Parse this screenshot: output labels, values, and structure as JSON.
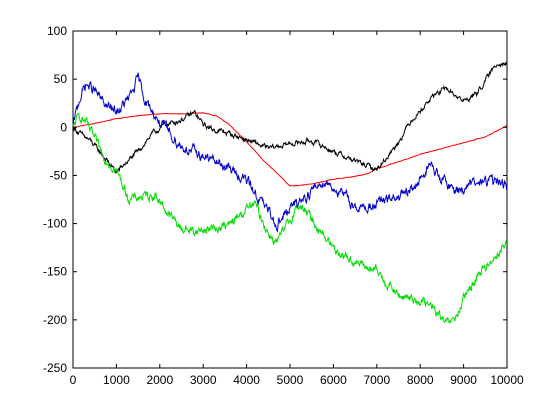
{
  "chart_data": {
    "type": "line",
    "title": "",
    "xlabel": "",
    "ylabel": "",
    "xlim": [
      0,
      10000
    ],
    "ylim": [
      -250,
      100
    ],
    "x_ticks": [
      "0",
      "1000",
      "2000",
      "3000",
      "4000",
      "5000",
      "6000",
      "7000",
      "8000",
      "9000",
      "10000"
    ],
    "y_ticks": [
      "100",
      "50",
      "0",
      "-50",
      "-100",
      "-150",
      "-200",
      "-250"
    ],
    "grid": false,
    "legend": "none",
    "series": [
      {
        "color": "#ff0000",
        "x": [
          0,
          500,
          1000,
          1500,
          2000,
          2500,
          3000,
          3300,
          3600,
          4000,
          4400,
          4800,
          5000,
          5500,
          6000,
          6500,
          6800,
          7000,
          7500,
          8000,
          8500,
          9000,
          9500,
          9800,
          10000
        ],
        "y": [
          0,
          4,
          9,
          12,
          14,
          14,
          15,
          12,
          3,
          -15,
          -35,
          -52,
          -61,
          -59,
          -54,
          -51,
          -48,
          -43,
          -36,
          -28,
          -22,
          -16,
          -10,
          -3,
          2
        ],
        "noise": 0.4
      },
      {
        "color": "#000000",
        "x": [
          0,
          200,
          400,
          700,
          1000,
          1200,
          1500,
          1800,
          2100,
          2500,
          2800,
          3000,
          3200,
          3500,
          4000,
          4500,
          5000,
          5500,
          6000,
          6500,
          7000,
          7200,
          7500,
          7800,
          8000,
          8300,
          8600,
          9000,
          9300,
          9600,
          9800,
          10000
        ],
        "y": [
          0,
          -8,
          -14,
          -30,
          -47,
          -38,
          -25,
          -8,
          2,
          8,
          15,
          3,
          -2,
          -5,
          -13,
          -22,
          -17,
          -14,
          -25,
          -35,
          -44,
          -33,
          -15,
          8,
          17,
          33,
          40,
          27,
          35,
          55,
          68,
          66
        ],
        "noise": 4
      },
      {
        "color": "#00dd00",
        "x": [
          0,
          150,
          300,
          700,
          1000,
          1300,
          1600,
          1900,
          2200,
          2500,
          2800,
          3200,
          3600,
          4000,
          4200,
          4500,
          4700,
          4900,
          5200,
          5500,
          6000,
          6500,
          7000,
          7500,
          8000,
          8300,
          8600,
          8800,
          9000,
          9300,
          9600,
          10000
        ],
        "y": [
          0,
          12,
          5,
          -30,
          -45,
          -75,
          -72,
          -70,
          -90,
          -105,
          -108,
          -105,
          -102,
          -85,
          -80,
          -110,
          -120,
          -105,
          -80,
          -95,
          -125,
          -140,
          -150,
          -175,
          -180,
          -188,
          -205,
          -200,
          -180,
          -155,
          -140,
          -120
        ],
        "noise": 7
      },
      {
        "color": "#0000cc",
        "x": [
          0,
          150,
          300,
          500,
          700,
          1000,
          1300,
          1500,
          1700,
          2000,
          2500,
          3000,
          3500,
          4000,
          4300,
          4700,
          5000,
          5400,
          5800,
          6200,
          6600,
          7000,
          7300,
          7700,
          8000,
          8200,
          8500,
          8800,
          9200,
          9600,
          10000
        ],
        "y": [
          0,
          30,
          45,
          38,
          25,
          15,
          30,
          50,
          25,
          5,
          -20,
          -30,
          -40,
          -55,
          -75,
          -100,
          -85,
          -70,
          -55,
          -70,
          -85,
          -80,
          -75,
          -70,
          -55,
          -38,
          -55,
          -65,
          -60,
          -55,
          -60
        ],
        "noise": 8
      }
    ]
  }
}
